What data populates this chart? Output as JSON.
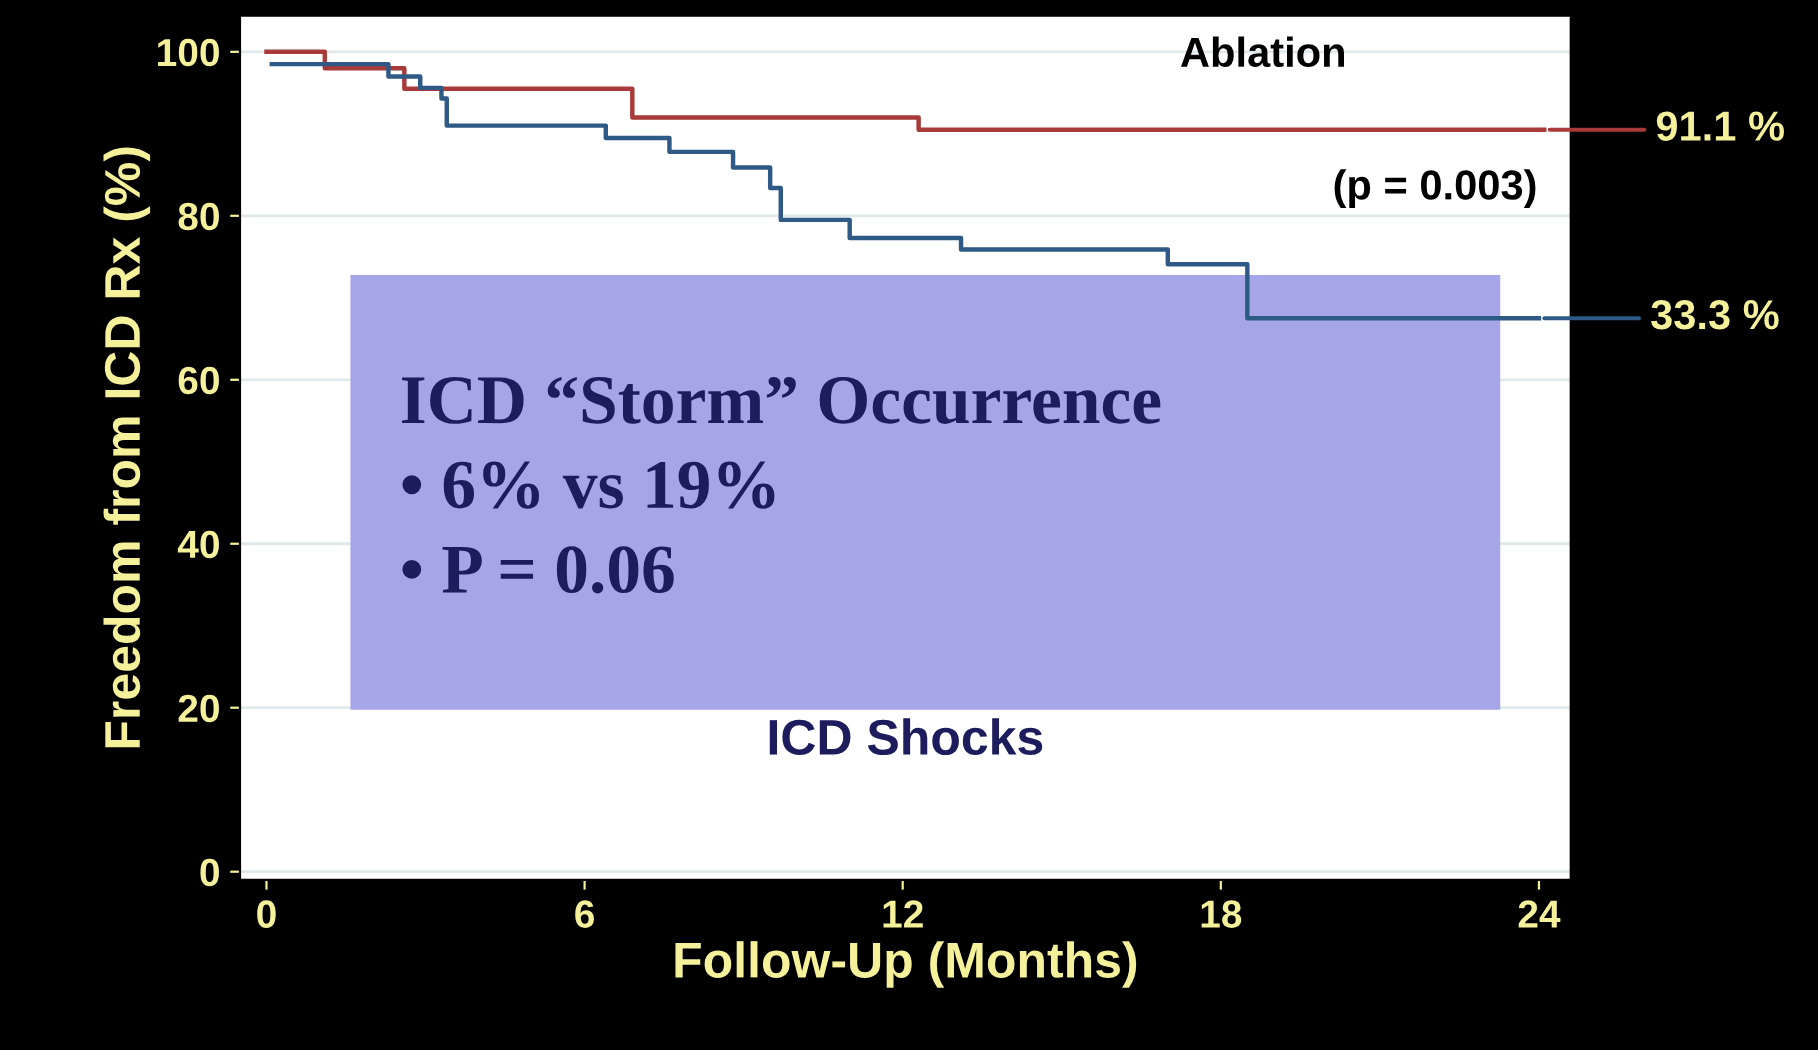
{
  "chart_data": {
    "type": "step",
    "xlabel": "Follow-Up (Months)",
    "ylabel": "Freedom from ICD Rx (%)",
    "xlim": [
      -0.5,
      24.6
    ],
    "ylim": [
      -1,
      104.4
    ],
    "xticks": [
      0,
      6,
      12,
      18,
      24
    ],
    "yticks": [
      0,
      20,
      40,
      60,
      80,
      100
    ],
    "grid": "y",
    "legend": false,
    "series": [
      {
        "name": "Ablation",
        "color": "#a83a3a",
        "x": [
          0,
          1.1,
          2.6,
          6.9,
          12.3,
          24.1
        ],
        "values": [
          100,
          98,
          95.5,
          92,
          90.5,
          90.5
        ]
      },
      {
        "color": "#2f5a85",
        "x": [
          0.1,
          2.3,
          2.9,
          3.3,
          3.4,
          6.4,
          7.6,
          8.8,
          9.5,
          9.7,
          11,
          13.1,
          17,
          18.5,
          24
        ],
        "values": [
          98.5,
          97,
          95.6,
          94.3,
          91,
          89.5,
          87.8,
          85.9,
          83.4,
          79.5,
          77.3,
          75.9,
          74.1,
          67.5,
          67.5
        ]
      }
    ],
    "annotations": [
      {
        "text": "91.1 %",
        "x": 24.1,
        "y": 90.5
      },
      {
        "text": "33.3 %",
        "x": 24,
        "y": 67.5
      },
      "(p = 0.003)",
      "ICD Shocks",
      "ICD “Storm” Occurrence\n• 6% vs 19%\n• P = 0.06"
    ]
  }
}
